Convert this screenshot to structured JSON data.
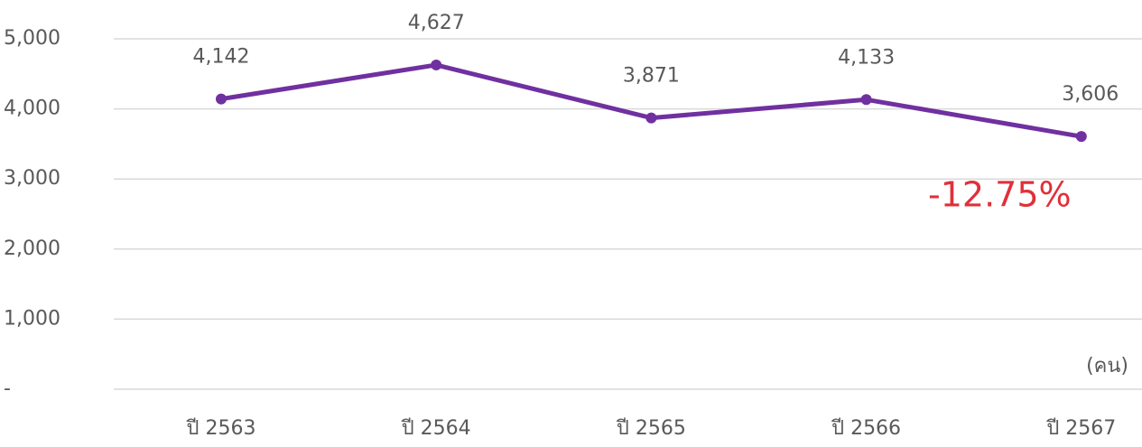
{
  "chart_data": {
    "type": "line",
    "categories": [
      "ปี 2563",
      "ปี 2564",
      "ปี 2565",
      "ปี 2566",
      "ปี 2567"
    ],
    "series": [
      {
        "name": null,
        "color": "#7030a0",
        "values": [
          4142,
          4627,
          3871,
          4133,
          3606
        ],
        "value_labels": [
          "4,142",
          "4,627",
          "3,871",
          "4,133",
          "3,606"
        ]
      }
    ],
    "ylim": [
      0,
      5000
    ],
    "yticks": [
      {
        "value": 0,
        "label": "-"
      },
      {
        "value": 1000,
        "label": "1,000"
      },
      {
        "value": 2000,
        "label": "2,000"
      },
      {
        "value": 3000,
        "label": "3,000"
      },
      {
        "value": 4000,
        "label": "4,000"
      },
      {
        "value": 5000,
        "label": "5,000"
      }
    ],
    "grid": true,
    "unit_label": "(คน)",
    "annotation": "-12.75%",
    "annotation_color": "#e0303a"
  }
}
